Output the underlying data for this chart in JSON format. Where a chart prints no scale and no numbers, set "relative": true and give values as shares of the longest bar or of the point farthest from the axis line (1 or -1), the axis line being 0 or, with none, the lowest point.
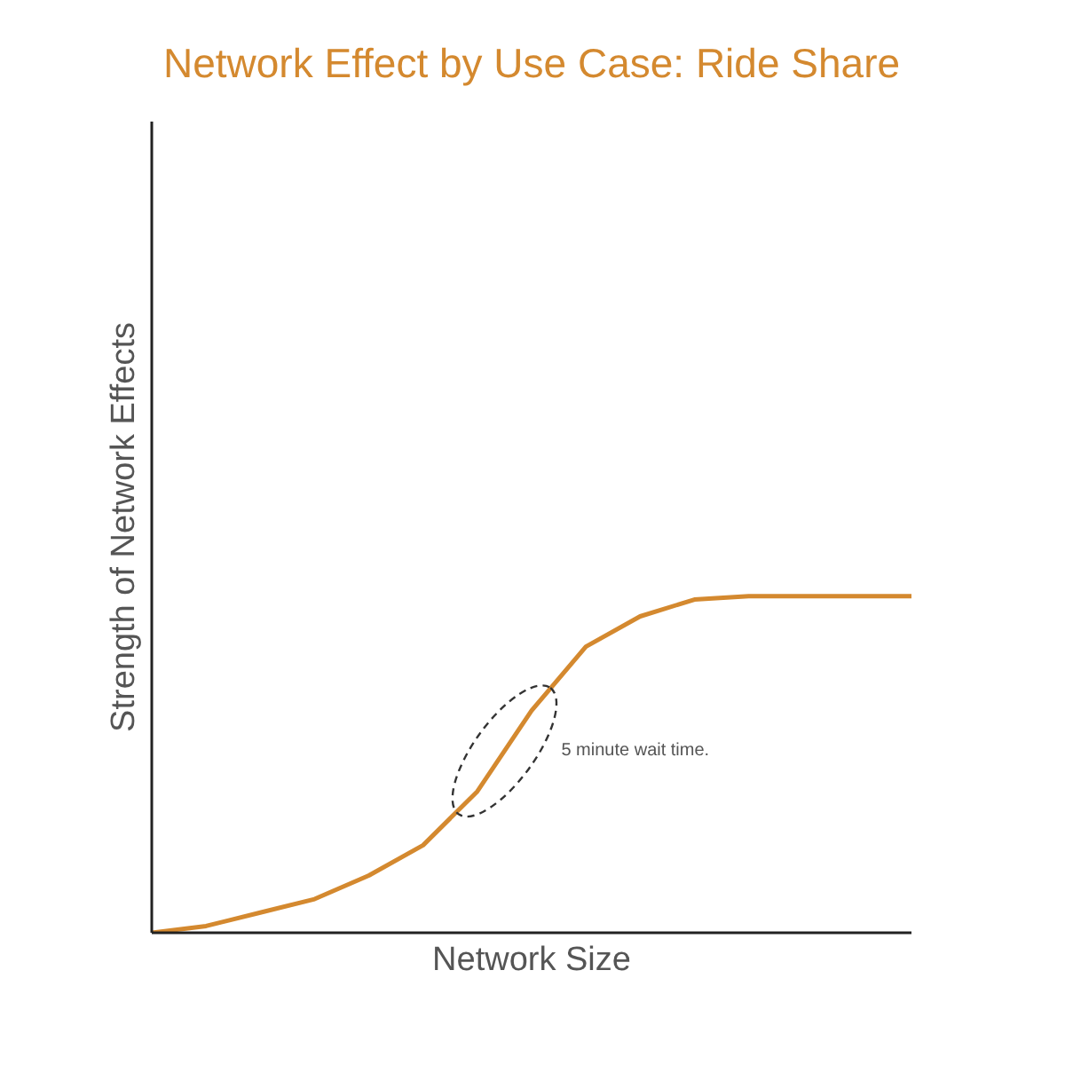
{
  "chart_data": {
    "type": "line",
    "title": "Network Effect by Use Case: Ride Share",
    "xlabel": "Network Size",
    "ylabel": "Strength of Network Effects",
    "relative": true,
    "categories": [
      null,
      null,
      null,
      null,
      null,
      null,
      null,
      null,
      null,
      null,
      null,
      null,
      null,
      null,
      null
    ],
    "series": [
      {
        "color": "#d4892f",
        "values": [
          0,
          0.02,
          0.06,
          0.1,
          0.17,
          0.26,
          0.42,
          0.66,
          0.85,
          0.94,
          0.99,
          1,
          1,
          1,
          1
        ]
      }
    ],
    "annotations": [
      "5 minute wait time."
    ],
    "line_style": "solid"
  }
}
